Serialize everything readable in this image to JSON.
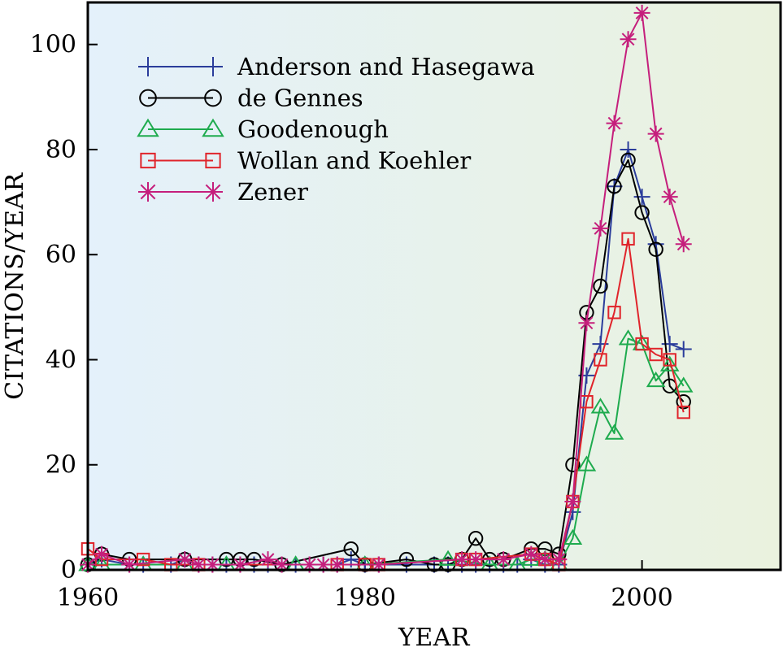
{
  "chart_data": {
    "type": "line",
    "title": "",
    "xlabel": "YEAR",
    "ylabel": "CITATIONS/YEAR",
    "xlim": [
      1960,
      2010
    ],
    "ylim": [
      0,
      108
    ],
    "x_ticks": [
      1960,
      1980,
      2000
    ],
    "y_ticks": [
      0,
      20,
      40,
      60,
      80,
      100
    ],
    "x_tick_labels": [
      "1960",
      "1980",
      "2000"
    ],
    "y_tick_labels": [
      "0",
      "20",
      "40",
      "60",
      "80",
      "100"
    ],
    "legend_position": "top-left",
    "background": {
      "gradient_from": "#e4f1fb",
      "gradient_to": "#eaf2de"
    },
    "series": [
      {
        "name": "Anderson and Hasegawa",
        "marker": "plus",
        "color": "#2b3d9b",
        "points": [
          [
            1960,
            1
          ],
          [
            1961,
            2
          ],
          [
            1963,
            1
          ],
          [
            1964,
            1
          ],
          [
            1966,
            1
          ],
          [
            1967,
            2
          ],
          [
            1968,
            1
          ],
          [
            1969,
            1
          ],
          [
            1970,
            1
          ],
          [
            1971,
            1
          ],
          [
            1972,
            1
          ],
          [
            1973,
            1
          ],
          [
            1974,
            1
          ],
          [
            1975,
            1
          ],
          [
            1976,
            1
          ],
          [
            1977,
            1
          ],
          [
            1978,
            1
          ],
          [
            1979,
            2
          ],
          [
            1980,
            1
          ],
          [
            1981,
            1
          ],
          [
            1983,
            1
          ],
          [
            1985,
            1
          ],
          [
            1986,
            1
          ],
          [
            1987,
            1
          ],
          [
            1988,
            1
          ],
          [
            1989,
            1
          ],
          [
            1990,
            1
          ],
          [
            1991,
            1
          ],
          [
            1992,
            2
          ],
          [
            1993,
            1
          ],
          [
            1994,
            1
          ],
          [
            1995,
            11
          ],
          [
            1996,
            37
          ],
          [
            1997,
            43
          ],
          [
            1998,
            73
          ],
          [
            1999,
            80
          ],
          [
            2000,
            71
          ],
          [
            2001,
            62
          ],
          [
            2002,
            43
          ],
          [
            2003,
            42
          ]
        ]
      },
      {
        "name": "de Gennes",
        "marker": "circle",
        "color": "#000000",
        "points": [
          [
            1960,
            1
          ],
          [
            1961,
            3
          ],
          [
            1963,
            2
          ],
          [
            1967,
            2
          ],
          [
            1970,
            2
          ],
          [
            1971,
            2
          ],
          [
            1972,
            2
          ],
          [
            1974,
            1
          ],
          [
            1979,
            4
          ],
          [
            1980,
            1
          ],
          [
            1983,
            2
          ],
          [
            1985,
            1
          ],
          [
            1986,
            1
          ],
          [
            1987,
            2
          ],
          [
            1988,
            6
          ],
          [
            1989,
            2
          ],
          [
            1990,
            2
          ],
          [
            1992,
            4
          ],
          [
            1993,
            4
          ],
          [
            1994,
            3
          ],
          [
            1995,
            20
          ],
          [
            1996,
            49
          ],
          [
            1997,
            54
          ],
          [
            1998,
            73
          ],
          [
            1999,
            78
          ],
          [
            2000,
            68
          ],
          [
            2001,
            61
          ],
          [
            2002,
            35
          ],
          [
            2003,
            32
          ]
        ]
      },
      {
        "name": "Goodenough",
        "marker": "triangle",
        "color": "#1eab4e",
        "points": [
          [
            1960,
            1
          ],
          [
            1961,
            1
          ],
          [
            1964,
            1
          ],
          [
            1967,
            1
          ],
          [
            1970,
            1
          ],
          [
            1975,
            1
          ],
          [
            1980,
            1
          ],
          [
            1986,
            2
          ],
          [
            1989,
            1
          ],
          [
            1991,
            1
          ],
          [
            1992,
            2
          ],
          [
            1993,
            2
          ],
          [
            1994,
            1
          ],
          [
            1995,
            6
          ],
          [
            1996,
            20
          ],
          [
            1997,
            31
          ],
          [
            1998,
            26
          ],
          [
            1999,
            44
          ],
          [
            2000,
            43
          ],
          [
            2001,
            36
          ],
          [
            2002,
            39
          ],
          [
            2003,
            35
          ]
        ]
      },
      {
        "name": "Wollan and Koehler",
        "marker": "square",
        "color": "#e0242b",
        "points": [
          [
            1960,
            4
          ],
          [
            1961,
            2
          ],
          [
            1964,
            2
          ],
          [
            1966,
            1
          ],
          [
            1968,
            1
          ],
          [
            1978,
            1
          ],
          [
            1980,
            1
          ],
          [
            1981,
            1
          ],
          [
            1987,
            2
          ],
          [
            1988,
            2
          ],
          [
            1992,
            3
          ],
          [
            1993,
            2
          ],
          [
            1994,
            1
          ],
          [
            1995,
            13
          ],
          [
            1996,
            32
          ],
          [
            1997,
            40
          ],
          [
            1998,
            49
          ],
          [
            1999,
            63
          ],
          [
            2000,
            43
          ],
          [
            2001,
            41
          ],
          [
            2002,
            40
          ],
          [
            2003,
            30
          ]
        ]
      },
      {
        "name": "Zener",
        "marker": "asterisk",
        "color": "#c51f7c",
        "points": [
          [
            1960,
            1
          ],
          [
            1961,
            3
          ],
          [
            1963,
            1
          ],
          [
            1967,
            2
          ],
          [
            1968,
            1
          ],
          [
            1969,
            1
          ],
          [
            1971,
            1
          ],
          [
            1973,
            2
          ],
          [
            1974,
            1
          ],
          [
            1976,
            1
          ],
          [
            1977,
            1
          ],
          [
            1978,
            1
          ],
          [
            1981,
            1
          ],
          [
            1987,
            2
          ],
          [
            1988,
            2
          ],
          [
            1990,
            2
          ],
          [
            1992,
            3
          ],
          [
            1993,
            2
          ],
          [
            1994,
            2
          ],
          [
            1995,
            13
          ],
          [
            1996,
            47
          ],
          [
            1997,
            65
          ],
          [
            1998,
            85
          ],
          [
            1999,
            101
          ],
          [
            2000,
            106
          ],
          [
            2001,
            83
          ],
          [
            2002,
            71
          ],
          [
            2003,
            62
          ]
        ]
      }
    ]
  }
}
